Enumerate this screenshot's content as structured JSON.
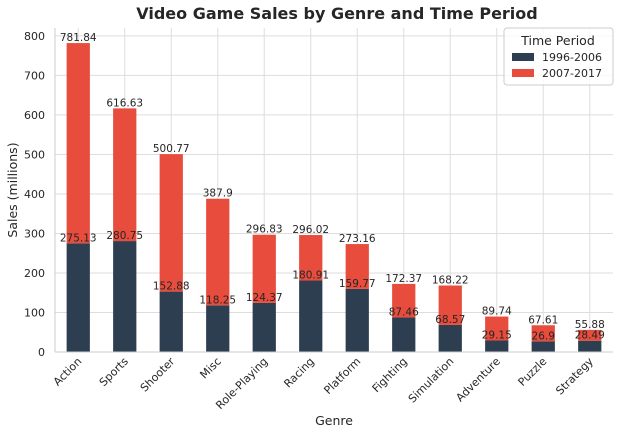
{
  "chart_data": {
    "type": "bar",
    "stacked": true,
    "title": "Video Game Sales by Genre and Time Period",
    "xlabel": "Genre",
    "ylabel": "Sales (millions)",
    "ylim": [
      0,
      820
    ],
    "yticks": [
      0,
      100,
      200,
      300,
      400,
      500,
      600,
      700,
      800
    ],
    "grid": true,
    "legend": {
      "title": "Time Period",
      "placement": "top-right"
    },
    "categories": [
      "Action",
      "Sports",
      "Shooter",
      "Misc",
      "Role-Playing",
      "Racing",
      "Platform",
      "Fighting",
      "Simulation",
      "Adventure",
      "Puzzle",
      "Strategy"
    ],
    "series": [
      {
        "name": "1996-2006",
        "color": "#2c3e50",
        "values": [
          275.13,
          280.75,
          152.88,
          118.25,
          124.37,
          180.91,
          159.77,
          87.46,
          68.57,
          29.15,
          26.9,
          28.49
        ]
      },
      {
        "name": "2007-2017",
        "color": "#e74c3c",
        "values": [
          506.71,
          335.88,
          347.89,
          269.65,
          172.46,
          115.11,
          113.39,
          84.91,
          99.65,
          60.59,
          40.71,
          27.39
        ]
      }
    ],
    "bottom_labels": [
      "275.13",
      "280.75",
      "152.88",
      "118.25",
      "124.37",
      "180.91",
      "159.77",
      "87.46",
      "68.57",
      "29.15",
      "26.9",
      "28.49"
    ],
    "total_labels": [
      "781.84",
      "616.63",
      "500.77",
      "387.9",
      "296.83",
      "296.02",
      "273.16",
      "172.37",
      "168.22",
      "89.74",
      "67.61",
      "55.88"
    ]
  }
}
